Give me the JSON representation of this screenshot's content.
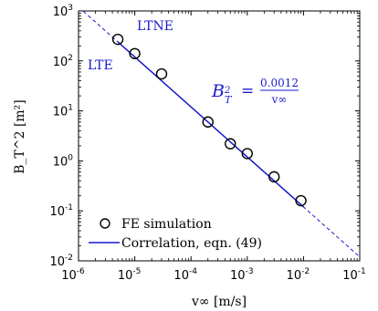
{
  "chart_data": {
    "type": "line",
    "xlabel": "v∞ [m/s]",
    "ylabel": "B_T^2 [m²]",
    "xscale": "log",
    "yscale": "log",
    "xlim": [
      1e-06,
      0.1
    ],
    "ylim": [
      0.01,
      1000
    ],
    "x_tick_exponents": [
      -6,
      -5,
      -4,
      -3,
      -2,
      -1
    ],
    "y_tick_exponents": [
      -2,
      -1,
      0,
      1,
      2,
      3
    ],
    "series": [
      {
        "name": "FE simulation",
        "style": "open-circle-markers",
        "color": "#000000",
        "x": [
          5e-06,
          1e-05,
          3e-05,
          0.0002,
          0.0005,
          0.001,
          0.003,
          0.009
        ],
        "y": [
          270,
          140,
          55,
          6,
          2.2,
          1.4,
          0.48,
          0.16
        ]
      },
      {
        "name": "Correlation, eqn. (49)",
        "style": "solid-line-with-dashed-extrapolation",
        "color": "#1a1acc",
        "coefficient": 0.0012,
        "solid_range": [
          5e-06,
          0.01
        ],
        "dashed_range": [
          1e-06,
          0.1
        ]
      }
    ],
    "equation": {
      "lhs": "B",
      "lhs_sub": "T",
      "lhs_sup": "2",
      "equals": "=",
      "numerator": "0.0012",
      "denominator": "v∞"
    },
    "annotations": {
      "ltne": "LTNE",
      "lte": "LTE"
    },
    "legend": {
      "placement": "bottom-left",
      "entries": [
        "FE simulation",
        "Correlation, eqn. (49)"
      ]
    },
    "tick_base": "10",
    "grid": false
  }
}
